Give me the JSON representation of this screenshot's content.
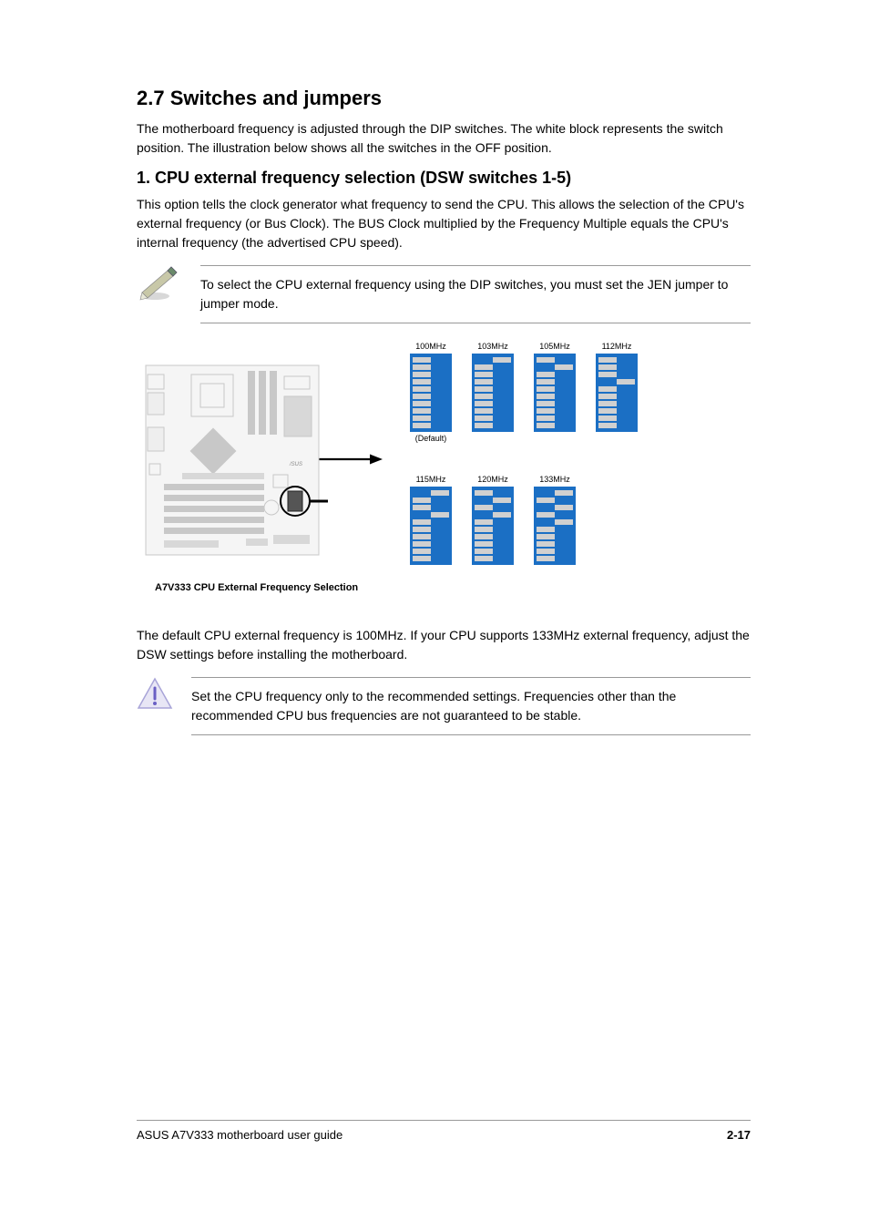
{
  "heading": {
    "number": "2.7",
    "title": "Switches and jumpers"
  },
  "intro": "The motherboard frequency is adjusted through the DIP switches. The white block represents the switch position. The illustration below shows all the switches in the OFF position.",
  "subsection1": {
    "heading": "1.   CPU external frequency selection (DSW switches 1-5)",
    "text": "This option tells the clock generator what frequency to send the CPU. This allows the selection of the CPU's external frequency (or Bus Clock). The BUS Clock multiplied by the Frequency Multiple equals the CPU's internal frequency (the advertised CPU speed)."
  },
  "note": "To select the CPU external frequency using the DIP switches, you must set the JEN jumper to jumper mode.",
  "diagram_caption": "A7V333 CPU External Frequency Selection",
  "dip_switches": {
    "row1": [
      {
        "top": "100MHz",
        "pattern": [
          "off",
          "off",
          "off",
          "off",
          "off",
          "off",
          "off",
          "off",
          "off",
          "off"
        ],
        "bot": "(Default)"
      },
      {
        "top": "103MHz",
        "pattern": [
          "on",
          "off",
          "off",
          "off",
          "off",
          "off",
          "off",
          "off",
          "off",
          "off"
        ],
        "bot": ""
      },
      {
        "top": "105MHz",
        "pattern": [
          "off",
          "on",
          "off",
          "off",
          "off",
          "off",
          "off",
          "off",
          "off",
          "off"
        ],
        "bot": ""
      },
      {
        "top": "112MHz",
        "pattern": [
          "off",
          "off",
          "off",
          "on",
          "off",
          "off",
          "off",
          "off",
          "off",
          "off"
        ],
        "bot": ""
      }
    ],
    "row2": [
      {
        "top": "115MHz",
        "pattern": [
          "on",
          "off",
          "off",
          "on",
          "off",
          "off",
          "off",
          "off",
          "off",
          "off"
        ],
        "bot": ""
      },
      {
        "top": "120MHz",
        "pattern": [
          "off",
          "on",
          "off",
          "on",
          "off",
          "off",
          "off",
          "off",
          "off",
          "off"
        ],
        "bot": ""
      },
      {
        "top": "133MHz",
        "pattern": [
          "on",
          "off",
          "on",
          "off",
          "on",
          "off",
          "off",
          "off",
          "off",
          "off"
        ],
        "bot": ""
      }
    ]
  },
  "colors": {
    "dip_bg": "#1b6fc4",
    "knob": "#d0d0d0",
    "line": "#999999"
  },
  "warning": "The default CPU external frequency is 100MHz. If your CPU supports 133MHz external frequency, adjust the DSW settings before installing the motherboard.",
  "caution": "Set the CPU frequency only to the recommended settings. Frequencies other than the recommended CPU bus frequencies are not guaranteed to be stable.",
  "footer": {
    "left": "ASUS A7V333 motherboard user guide",
    "right": "2-17"
  }
}
